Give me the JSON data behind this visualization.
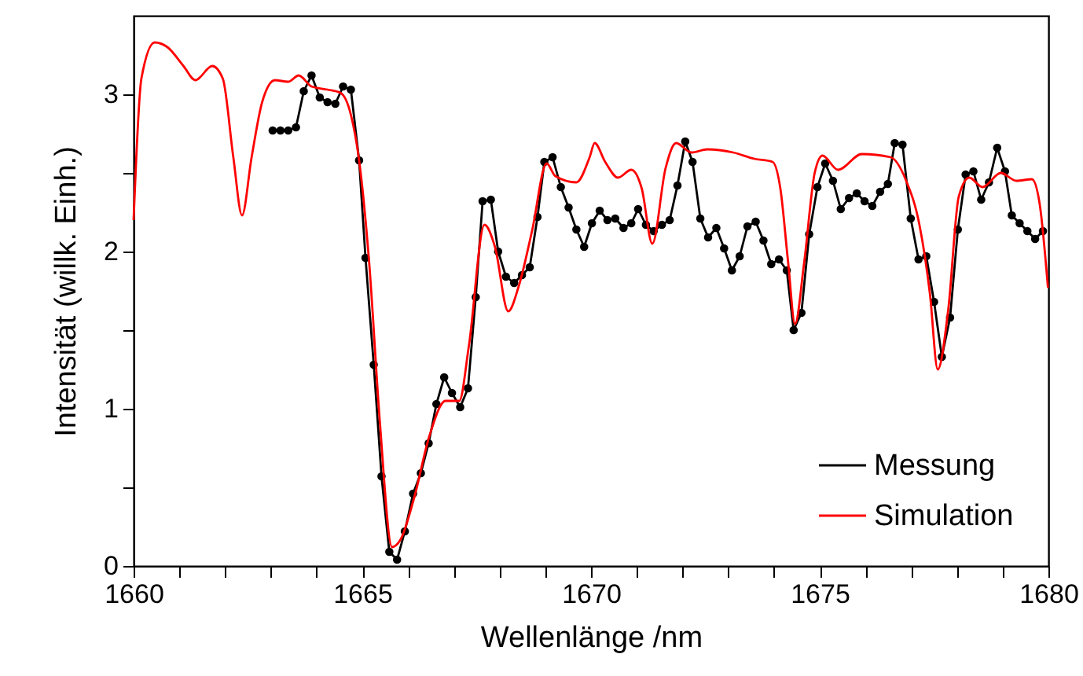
{
  "chart_data": {
    "type": "line",
    "xlabel": "Wellenlänge /nm",
    "ylabel": "Intensität (willk. Einh.)",
    "xlim": [
      1660,
      1680
    ],
    "ylim": [
      0,
      3.5
    ],
    "xticks": [
      1660,
      {
        "value": 1661,
        "label": null
      },
      {
        "value": 1662,
        "label": null
      },
      {
        "value": 1663,
        "label": null
      },
      {
        "value": 1664,
        "label": null
      },
      1665,
      {
        "value": 1666,
        "label": null
      },
      {
        "value": 1667,
        "label": null
      },
      {
        "value": 1668,
        "label": null
      },
      {
        "value": 1669,
        "label": null
      },
      1670,
      {
        "value": 1671,
        "label": null
      },
      {
        "value": 1672,
        "label": null
      },
      {
        "value": 1673,
        "label": null
      },
      {
        "value": 1674,
        "label": null
      },
      1675,
      {
        "value": 1676,
        "label": null
      },
      {
        "value": 1677,
        "label": null
      },
      {
        "value": 1678,
        "label": null
      },
      {
        "value": 1679,
        "label": null
      },
      1680
    ],
    "yticks": [
      0,
      {
        "value": 0.5,
        "label": null
      },
      1,
      {
        "value": 1.5,
        "label": null
      },
      2,
      {
        "value": 2.5,
        "label": null
      },
      3
    ],
    "grid": false,
    "legend": "bottom right",
    "series": [
      {
        "name": "Messung",
        "color": "#000000",
        "marker": "circle",
        "x": [
          1663.04,
          1663.21,
          1663.38,
          1663.55,
          1663.72,
          1663.89,
          1664.07,
          1664.24,
          1664.41,
          1664.58,
          1664.75,
          1664.93,
          1665.07,
          1665.25,
          1665.42,
          1665.59,
          1665.76,
          1665.93,
          1666.11,
          1666.28,
          1666.45,
          1666.62,
          1666.79,
          1666.96,
          1667.14,
          1667.31,
          1667.48,
          1667.63,
          1667.81,
          1667.97,
          1668.14,
          1668.32,
          1668.49,
          1668.66,
          1668.83,
          1668.98,
          1669.16,
          1669.34,
          1669.51,
          1669.68,
          1669.85,
          1670.02,
          1670.19,
          1670.36,
          1670.53,
          1670.71,
          1670.88,
          1671.03,
          1671.2,
          1671.37,
          1671.55,
          1671.72,
          1671.89,
          1672.06,
          1672.22,
          1672.39,
          1672.56,
          1672.74,
          1672.91,
          1673.08,
          1673.25,
          1673.42,
          1673.6,
          1673.77,
          1673.94,
          1674.11,
          1674.28,
          1674.43,
          1674.6,
          1674.77,
          1674.95,
          1675.12,
          1675.29,
          1675.46,
          1675.64,
          1675.81,
          1675.98,
          1676.15,
          1676.32,
          1676.49,
          1676.64,
          1676.81,
          1676.99,
          1677.16,
          1677.33,
          1677.5,
          1677.67,
          1677.85,
          1678.02,
          1678.19,
          1678.36,
          1678.53,
          1678.7,
          1678.88,
          1679.05,
          1679.2,
          1679.37,
          1679.54,
          1679.71,
          1679.88
        ],
        "values": [
          2.77,
          2.77,
          2.77,
          2.79,
          3.02,
          3.12,
          2.98,
          2.95,
          2.94,
          3.05,
          3.03,
          2.58,
          1.96,
          1.28,
          0.57,
          0.09,
          0.04,
          0.22,
          0.46,
          0.59,
          0.78,
          1.03,
          1.2,
          1.1,
          1.01,
          1.13,
          1.71,
          2.32,
          2.33,
          2.0,
          1.84,
          1.8,
          1.85,
          1.9,
          2.22,
          2.57,
          2.6,
          2.41,
          2.28,
          2.14,
          2.03,
          2.18,
          2.26,
          2.2,
          2.21,
          2.15,
          2.18,
          2.27,
          2.17,
          2.13,
          2.17,
          2.2,
          2.42,
          2.7,
          2.57,
          2.21,
          2.09,
          2.15,
          2.02,
          1.88,
          1.97,
          2.16,
          2.19,
          2.07,
          1.92,
          1.95,
          1.88,
          1.5,
          1.61,
          2.11,
          2.41,
          2.56,
          2.45,
          2.27,
          2.34,
          2.37,
          2.32,
          2.29,
          2.38,
          2.43,
          2.69,
          2.68,
          2.21,
          1.95,
          1.97,
          1.68,
          1.33,
          1.58,
          2.14,
          2.49,
          2.51,
          2.33,
          2.44,
          2.66,
          2.51,
          2.23,
          2.18,
          2.13,
          2.08,
          2.13
        ]
      },
      {
        "name": "Simulation",
        "color": "#ff0000",
        "marker": "none",
        "x": [
          1660.0,
          1660.17,
          1660.46,
          1660.74,
          1661.09,
          1661.35,
          1661.72,
          1661.95,
          1662.18,
          1662.37,
          1662.58,
          1662.81,
          1663.09,
          1663.38,
          1663.61,
          1663.89,
          1664.24,
          1664.52,
          1664.75,
          1664.93,
          1665.15,
          1665.38,
          1665.65,
          1665.84,
          1666.13,
          1666.47,
          1666.82,
          1667.12,
          1667.33,
          1667.67,
          1667.9,
          1668.19,
          1668.42,
          1668.71,
          1669.03,
          1669.22,
          1669.68,
          1669.97,
          1670.08,
          1670.31,
          1670.59,
          1670.88,
          1671.11,
          1671.34,
          1671.63,
          1671.86,
          1672.2,
          1672.54,
          1673.11,
          1673.57,
          1673.97,
          1674.14,
          1674.31,
          1674.46,
          1674.66,
          1674.89,
          1675.06,
          1675.4,
          1675.92,
          1676.55,
          1676.89,
          1677.18,
          1677.41,
          1677.58,
          1677.81,
          1678.04,
          1678.27,
          1678.56,
          1678.96,
          1679.3,
          1679.64,
          1679.81,
          1679.99
        ],
        "values": [
          2.2,
          3.1,
          3.33,
          3.3,
          3.18,
          3.09,
          3.18,
          3.1,
          2.6,
          2.23,
          2.6,
          2.95,
          3.09,
          3.08,
          3.12,
          3.05,
          3.03,
          3.01,
          2.87,
          2.58,
          1.93,
          0.93,
          0.12,
          0.17,
          0.43,
          0.83,
          1.05,
          1.05,
          1.4,
          2.17,
          2.03,
          1.62,
          1.78,
          2.13,
          2.56,
          2.48,
          2.44,
          2.6,
          2.69,
          2.57,
          2.47,
          2.52,
          2.4,
          2.05,
          2.53,
          2.69,
          2.63,
          2.65,
          2.63,
          2.59,
          2.57,
          2.4,
          1.93,
          1.54,
          1.93,
          2.5,
          2.61,
          2.52,
          2.62,
          2.6,
          2.45,
          2.17,
          1.73,
          1.25,
          1.63,
          2.35,
          2.47,
          2.41,
          2.5,
          2.45,
          2.46,
          2.3,
          1.77
        ]
      }
    ]
  }
}
